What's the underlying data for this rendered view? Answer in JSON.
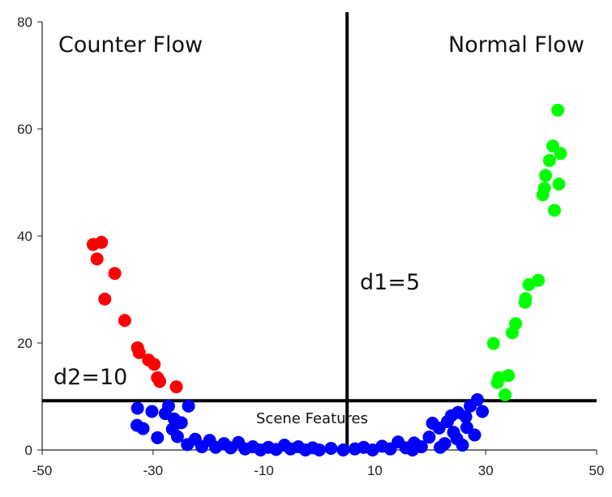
{
  "chart_data": {
    "type": "scatter",
    "xlim": [
      -50,
      50
    ],
    "ylim": [
      0,
      80
    ],
    "x_ticks": [
      -50,
      -30,
      -10,
      10,
      30,
      50
    ],
    "y_ticks": [
      0,
      20,
      40,
      60,
      80
    ],
    "grid": false,
    "legend": "none",
    "annotations": {
      "counter_flow": "Counter Flow",
      "normal_flow": "Normal Flow",
      "d1": "d1=5",
      "d2": "d2=10",
      "scene_features": "Scene Features"
    },
    "reference_lines": {
      "vertical_x": 5,
      "horizontal_y": 9.2
    },
    "series": [
      {
        "color": "#ff0000",
        "points": [
          [
            -40.8,
            38.4
          ],
          [
            -39.3,
            38.8
          ],
          [
            -40.1,
            35.7
          ],
          [
            -36.9,
            33.0
          ],
          [
            -38.7,
            28.2
          ],
          [
            -35.1,
            24.2
          ],
          [
            -32.8,
            19.1
          ],
          [
            -32.5,
            18.2
          ],
          [
            -30.8,
            16.8
          ],
          [
            -29.8,
            16.0
          ],
          [
            -29.2,
            13.5
          ],
          [
            -28.8,
            12.8
          ],
          [
            -25.8,
            11.8
          ]
        ]
      },
      {
        "color": "#00ff00",
        "points": [
          [
            43.0,
            63.5
          ],
          [
            42.1,
            56.8
          ],
          [
            43.5,
            55.4
          ],
          [
            41.5,
            54.1
          ],
          [
            40.8,
            51.3
          ],
          [
            40.6,
            48.9
          ],
          [
            40.3,
            47.7
          ],
          [
            43.2,
            49.7
          ],
          [
            42.4,
            44.8
          ],
          [
            39.5,
            31.7
          ],
          [
            37.8,
            30.9
          ],
          [
            37.2,
            28.3
          ],
          [
            37.1,
            27.6
          ],
          [
            35.4,
            23.6
          ],
          [
            34.8,
            21.9
          ],
          [
            31.4,
            19.9
          ],
          [
            32.4,
            13.5
          ],
          [
            32.1,
            12.6
          ],
          [
            34.1,
            13.9
          ],
          [
            33.5,
            10.3
          ]
        ]
      },
      {
        "color": "#0000ff",
        "points": [
          [
            -32.8,
            7.8
          ],
          [
            -30.2,
            7.2
          ],
          [
            -27.2,
            8.2
          ],
          [
            -23.6,
            8.2
          ],
          [
            -32.9,
            4.6
          ],
          [
            -31.8,
            4.0
          ],
          [
            -29.2,
            2.3
          ],
          [
            -27.8,
            6.8
          ],
          [
            -26.2,
            5.8
          ],
          [
            -24.9,
            5.1
          ],
          [
            -26.5,
            3.9
          ],
          [
            -25.6,
            2.5
          ],
          [
            -23.8,
            1.0
          ],
          [
            -22.4,
            2.0
          ],
          [
            -21.2,
            0.6
          ],
          [
            -19.8,
            1.8
          ],
          [
            -18.7,
            0.5
          ],
          [
            -17.2,
            1.2
          ],
          [
            -16.0,
            0.4
          ],
          [
            -14.6,
            1.4
          ],
          [
            -13.4,
            0.2
          ],
          [
            -12.0,
            0.6
          ],
          [
            -10.6,
            0.0
          ],
          [
            -9.2,
            0.5
          ],
          [
            -7.8,
            0.1
          ],
          [
            -6.3,
            0.9
          ],
          [
            -5.2,
            0.2
          ],
          [
            -3.8,
            0.6
          ],
          [
            -2.5,
            0.0
          ],
          [
            -1.2,
            0.4
          ],
          [
            0.0,
            0.0
          ],
          [
            2.1,
            0.3
          ],
          [
            4.3,
            0.0
          ],
          [
            6.4,
            0.2
          ],
          [
            8.0,
            0.5
          ],
          [
            9.6,
            0.0
          ],
          [
            11.3,
            0.7
          ],
          [
            12.8,
            0.2
          ],
          [
            14.2,
            1.5
          ],
          [
            15.6,
            0.4
          ],
          [
            17.1,
            1.3
          ],
          [
            18.4,
            0.6
          ],
          [
            19.8,
            2.4
          ],
          [
            20.4,
            5.0
          ],
          [
            21.6,
            4.1
          ],
          [
            22.6,
            1.2
          ],
          [
            23.1,
            5.3
          ],
          [
            24.2,
            3.3
          ],
          [
            25.0,
            7.0
          ],
          [
            25.8,
            0.9
          ],
          [
            26.4,
            6.2
          ],
          [
            27.2,
            8.2
          ],
          [
            28.0,
            2.8
          ],
          [
            28.5,
            9.4
          ],
          [
            29.4,
            7.2
          ],
          [
            26.6,
            4.2
          ],
          [
            24.8,
            2.1
          ],
          [
            23.8,
            6.4
          ],
          [
            21.8,
            0.5
          ],
          [
            16.8,
            0.0
          ]
        ]
      }
    ]
  }
}
